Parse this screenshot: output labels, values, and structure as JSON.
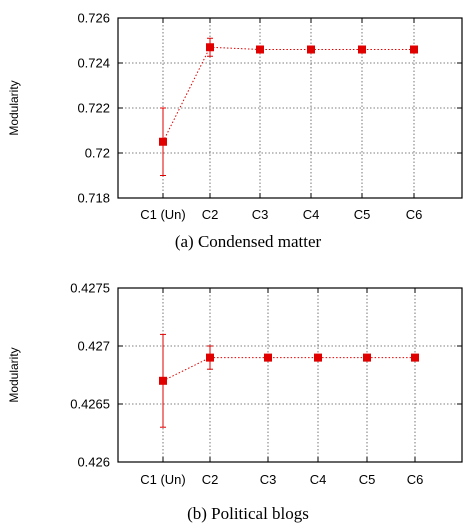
{
  "style": {
    "series_color": "#e00000"
  },
  "chart_data": [
    {
      "type": "line",
      "caption": "(a) Condensed matter",
      "ylabel": "Modularity",
      "xlabel": "",
      "categories": [
        "C1 (Un)",
        "C2",
        "C3",
        "C4",
        "C5",
        "C6"
      ],
      "ylim": [
        0.718,
        0.726
      ],
      "yticks": [
        0.718,
        0.72,
        0.722,
        0.724,
        0.726
      ],
      "ytick_labels": [
        "0.718",
        "0.72",
        "0.722",
        "0.724",
        "0.726"
      ],
      "grid": true,
      "series": [
        {
          "values": [
            0.7205,
            0.7247,
            0.7246,
            0.7246,
            0.7246,
            0.7246
          ],
          "errors": [
            0.0015,
            0.0004,
            0.0001,
            0.0001,
            0.0001,
            0.0001
          ]
        }
      ]
    },
    {
      "type": "line",
      "caption": "(b) Political blogs",
      "ylabel": "Modularity",
      "xlabel": "",
      "categories": [
        "C1 (Un)",
        "C2",
        "C3",
        "C4",
        "C5",
        "C6"
      ],
      "ylim": [
        0.426,
        0.4275
      ],
      "yticks": [
        0.426,
        0.4265,
        0.427,
        0.4275
      ],
      "ytick_labels": [
        "0.426",
        "0.4265",
        "0.427",
        "0.4275"
      ],
      "grid": true,
      "series": [
        {
          "values": [
            0.4267,
            0.4269,
            0.4269,
            0.4269,
            0.4269,
            0.4269
          ],
          "errors": [
            0.0004,
            0.0001,
            0.0,
            0.0,
            0.0,
            0.0
          ]
        }
      ]
    }
  ]
}
